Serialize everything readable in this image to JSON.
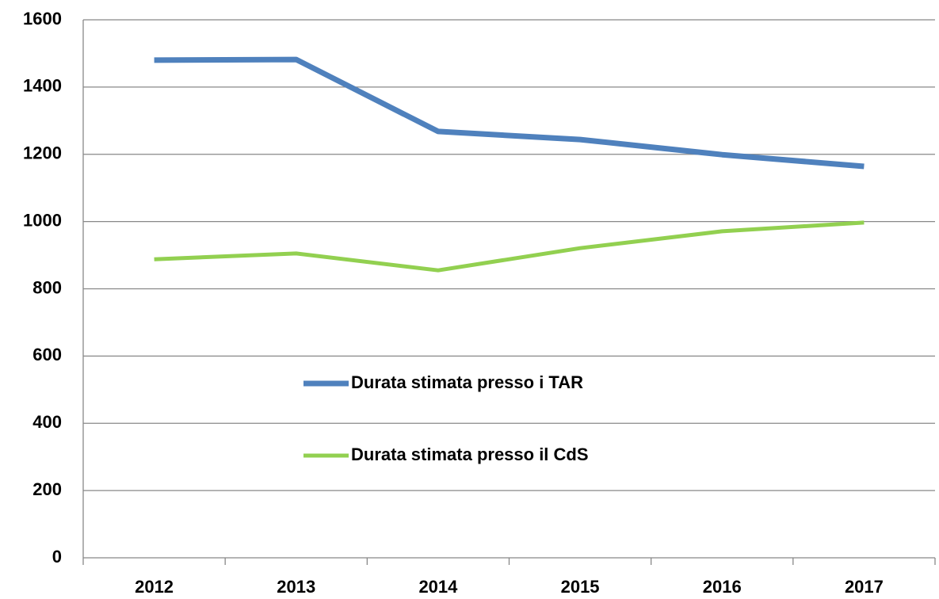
{
  "chart_data": {
    "type": "line",
    "categories": [
      "2012",
      "2013",
      "2014",
      "2015",
      "2016",
      "2017"
    ],
    "series": [
      {
        "name": "Durata stimata presso i TAR",
        "color": "#4f81bd",
        "values": [
          1480,
          1482,
          1268,
          1244,
          1199,
          1164
        ]
      },
      {
        "name": "Durata stimata presso il CdS",
        "color": "#92d050",
        "values": [
          888,
          905,
          855,
          921,
          971,
          997
        ]
      }
    ],
    "ylim": [
      0,
      1600
    ],
    "yticks": [
      0,
      200,
      400,
      600,
      800,
      1000,
      1200,
      1400,
      1600
    ],
    "grid": true
  }
}
